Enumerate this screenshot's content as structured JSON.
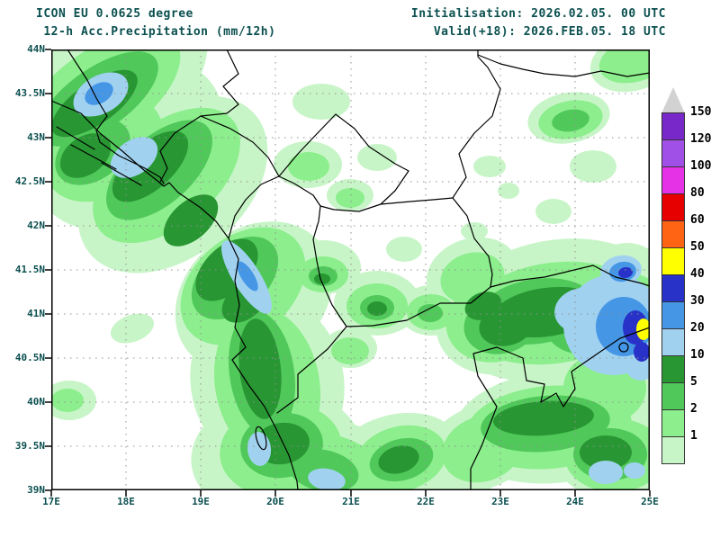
{
  "header": {
    "model_line": "ICON EU 0.0625 degree",
    "param_line": " 12-h Acc.Precipitation (mm/12h)",
    "init_line": "Initialisation: 2026.02.05. 00 UTC",
    "valid_line": "Valid(+18): 2026.FEB.05. 18 UTC"
  },
  "map": {
    "lat_labels": [
      "44N",
      "43.5N",
      "43N",
      "42.5N",
      "42N",
      "41.5N",
      "41N",
      "40.5N",
      "40N",
      "39.5N",
      "39N"
    ],
    "lon_labels": [
      "17E",
      "18E",
      "19E",
      "20E",
      "21E",
      "22E",
      "23E",
      "24E",
      "25E"
    ]
  },
  "colorbar": {
    "labels": [
      "150",
      "120",
      "100",
      "80",
      "60",
      "50",
      "40",
      "30",
      "20",
      "10",
      "5",
      "2",
      "1"
    ],
    "swatches": [
      "#7828c8",
      "#a050e6",
      "#e632e6",
      "#e60000",
      "#ff6414",
      "#ffff00",
      "#2832c8",
      "#4696e6",
      "#a0d2f0",
      "#289632",
      "#50c85a",
      "#8cee8c",
      "#c8f5c8"
    ],
    "triangle_color": "#d2d2d2"
  },
  "palette": {
    "pale": "#c8f5c8",
    "light": "#8cee8c",
    "mid": "#50c85a",
    "dark": "#289632",
    "light_blue": "#a0d2f0",
    "mid_blue": "#4696e6",
    "navy": "#2832c8",
    "yellow": "#ffff00"
  }
}
